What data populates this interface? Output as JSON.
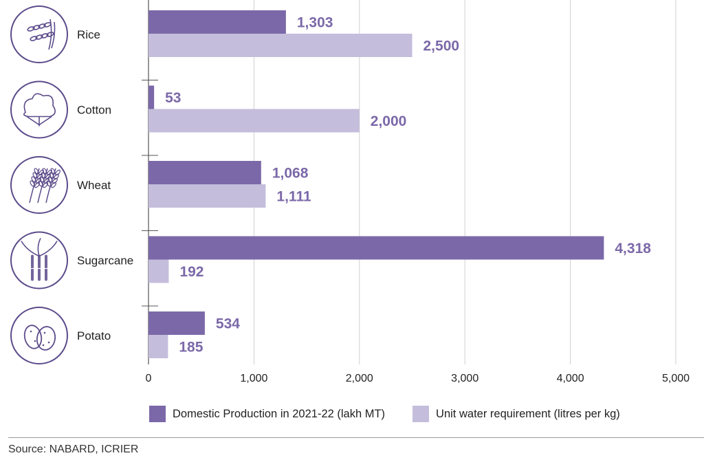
{
  "colors": {
    "production": "#7b68a8",
    "water": "#c4bddb",
    "label": "#7b68a8",
    "icon_stroke": "#5b4b8a"
  },
  "chart_data": {
    "type": "bar",
    "orientation": "horizontal",
    "categories": [
      "Rice",
      "Cotton",
      "Wheat",
      "Sugarcane",
      "Potato"
    ],
    "icons": [
      "rice-icon",
      "cotton-icon",
      "wheat-icon",
      "sugarcane-icon",
      "potato-icon"
    ],
    "series": [
      {
        "name": "Domestic Production in 2021-22 (lakh MT)",
        "values": [
          1303,
          53,
          1068,
          4318,
          534
        ],
        "labels": [
          "1,303",
          "53",
          "1,068",
          "4,318",
          "534"
        ]
      },
      {
        "name": "Unit water requirement (litres per kg)",
        "values": [
          2500,
          2000,
          1111,
          192,
          185
        ],
        "labels": [
          "2,500",
          "2,000",
          "1,111",
          "192",
          "185"
        ]
      }
    ],
    "xlim": [
      0,
      5000
    ],
    "xticks": [
      0,
      1000,
      2000,
      3000,
      4000,
      5000
    ],
    "xtick_labels": [
      "0",
      "1,000",
      "2,000",
      "3,000",
      "4,000",
      "5,000"
    ],
    "grid": true,
    "legend": "bottom"
  },
  "legend": {
    "production_label": "Domestic Production in 2021-22 (lakh MT)",
    "water_label": "Unit water requirement (litres per kg)"
  },
  "source": "Source: NABARD, ICRIER"
}
